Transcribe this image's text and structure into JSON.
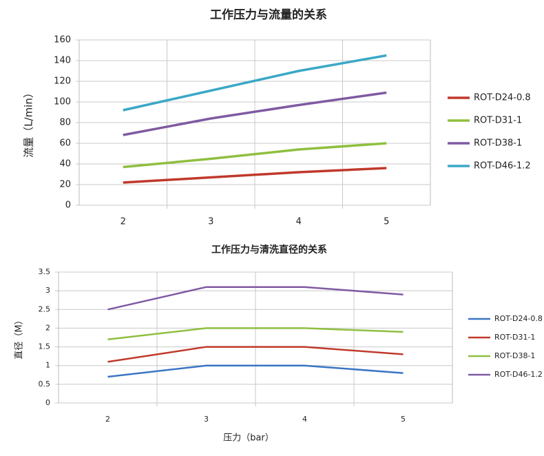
{
  "chart_data": [
    {
      "type": "line",
      "title": "工作压力与流量的关系",
      "y_label": "流量（L/min）",
      "categories": [
        "2",
        "3",
        "4",
        "5"
      ],
      "series": [
        {
          "name": "ROT-D24-0.8",
          "color": "#c0392b",
          "values": [
            22,
            27,
            32,
            36
          ]
        },
        {
          "name": "ROT-D31-1",
          "color": "#8fbf3f",
          "values": [
            37,
            45,
            54,
            60
          ]
        },
        {
          "name": "ROT-D38-1",
          "color": "#7f5aa2",
          "values": [
            68,
            84,
            97,
            109
          ]
        },
        {
          "name": "ROT-D46-1.2",
          "color": "#3aa8c6",
          "values": [
            92,
            111,
            130,
            145
          ]
        }
      ],
      "ylim": [
        0,
        160
      ],
      "yticks": [
        0,
        20,
        40,
        60,
        80,
        100,
        120,
        140,
        160
      ],
      "grid": true,
      "legend": "right"
    },
    {
      "type": "line",
      "title": "工作压力与清洗直径的关系",
      "y_label": "直径（M）",
      "x_label": "压力（bar）",
      "categories": [
        "2",
        "3",
        "4",
        "5"
      ],
      "series": [
        {
          "name": "ROT-D24-0.8",
          "color": "#3a75c4",
          "values": [
            0.7,
            1,
            1,
            0.8
          ]
        },
        {
          "name": "ROT-D31-1",
          "color": "#c0392b",
          "values": [
            1.1,
            1.5,
            1.5,
            1.3
          ]
        },
        {
          "name": "ROT-D38-1",
          "color": "#8fbf3f",
          "values": [
            1.7,
            2,
            2,
            1.9
          ]
        },
        {
          "name": "ROT-D46-1.2",
          "color": "#7f5aa2",
          "values": [
            2.5,
            3.1,
            3.1,
            2.9
          ]
        }
      ],
      "ylim": [
        0,
        3.5
      ],
      "yticks": [
        0,
        0.5,
        1,
        1.5,
        2,
        2.5,
        3,
        3.5
      ],
      "grid": true,
      "legend": "right"
    }
  ]
}
